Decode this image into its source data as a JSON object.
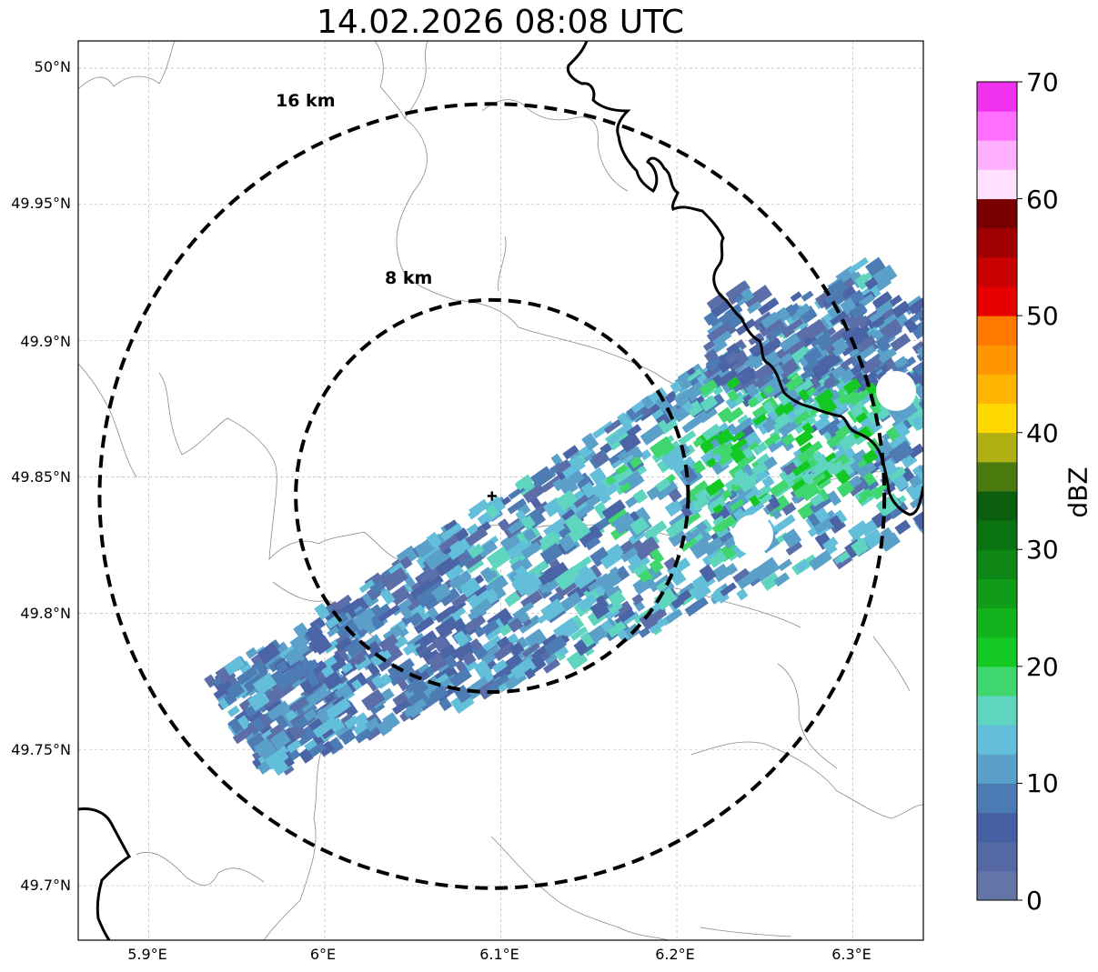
{
  "title": "14.02.2026 08:08 UTC",
  "map": {
    "lon_range": [
      5.86,
      6.34
    ],
    "lat_range": [
      49.68,
      50.01
    ],
    "grid": true,
    "lat_ticks": [
      "50°N",
      "49.95°N",
      "49.9°N",
      "49.85°N",
      "49.8°N",
      "49.75°N",
      "49.7°N"
    ],
    "lon_ticks": [
      "5.9°E",
      "6°E",
      "6.1°E",
      "6.2°E",
      "6.3°E"
    ],
    "radar_site": {
      "lon": 6.095,
      "lat": 49.843
    },
    "range_rings": [
      {
        "label": "16 km",
        "radius_km": 16
      },
      {
        "label": "8 km",
        "radius_km": 8
      }
    ]
  },
  "colorbar": {
    "label": "dBZ",
    "min": 0,
    "max": 70,
    "ticks": [
      "0",
      "10",
      "20",
      "30",
      "40",
      "50",
      "60",
      "70"
    ],
    "colors": [
      "#6574a7",
      "#5468a3",
      "#4460a3",
      "#4b7bb2",
      "#5aa0c8",
      "#63bfd9",
      "#5fd5c0",
      "#3fd66e",
      "#14c824",
      "#12b31c",
      "#109c1a",
      "#0e8717",
      "#0b7312",
      "#0a5e0d",
      "#4b7a0e",
      "#b0b012",
      "#ffd800",
      "#ffb400",
      "#ff9600",
      "#ff7800",
      "#e60000",
      "#c80000",
      "#a00000",
      "#780000",
      "#ffe0ff",
      "#ffb0ff",
      "#ff6eff",
      "#f032f0"
    ]
  }
}
